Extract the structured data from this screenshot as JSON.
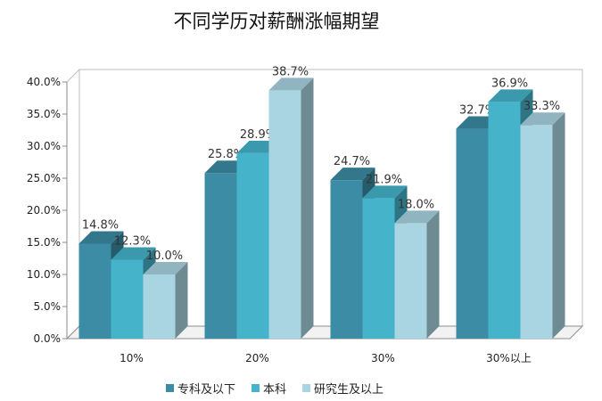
{
  "chart_data": {
    "type": "bar",
    "title": "不同学历对薪酬涨幅期望",
    "categories": [
      "10%",
      "20%",
      "30%",
      "30%以上"
    ],
    "ylim": [
      0,
      40
    ],
    "yticks": [
      "0.0%",
      "5.0%",
      "10.0%",
      "15.0%",
      "20.0%",
      "25.0%",
      "30.0%",
      "35.0%",
      "40.0%"
    ],
    "legend_position": "bottom",
    "series": [
      {
        "name": "专科及以下",
        "values": [
          14.8,
          25.8,
          24.7,
          32.7
        ],
        "labels": [
          "14.8%",
          "25.8%",
          "24.7%",
          "32.7%"
        ],
        "color": "#3b8ca4"
      },
      {
        "name": "本科",
        "values": [
          12.3,
          28.9,
          21.9,
          36.9
        ],
        "labels": [
          "12.3%",
          "28.9%",
          "21.9%",
          "36.9%"
        ],
        "color": "#45b4cb"
      },
      {
        "name": "研究生及以上",
        "values": [
          10.0,
          38.7,
          18.0,
          33.3
        ],
        "labels": [
          "10.0%",
          "38.7%",
          "18.0%",
          "33.3%"
        ],
        "color": "#a9d4e2"
      }
    ]
  }
}
